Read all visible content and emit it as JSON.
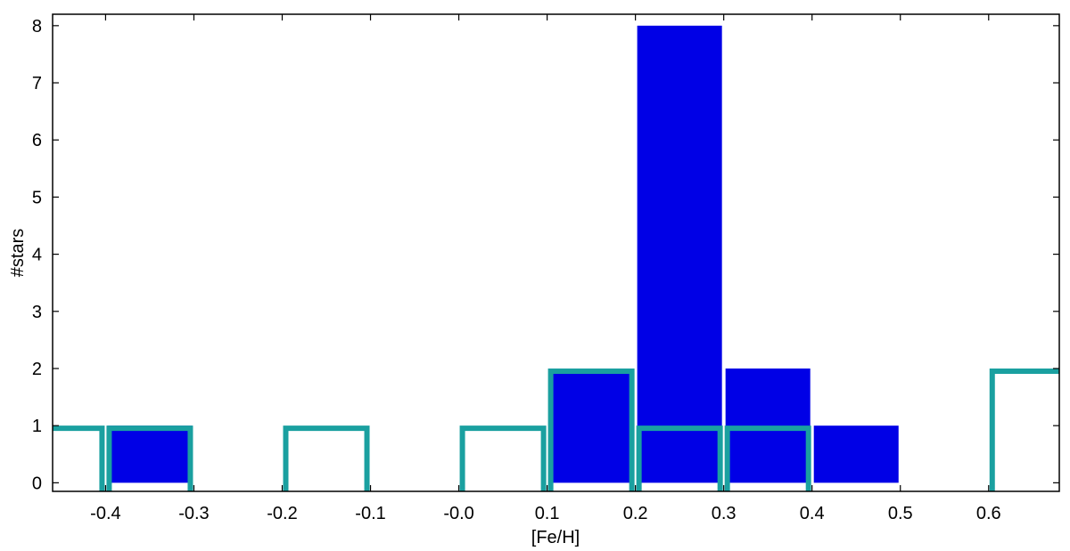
{
  "chart_data": {
    "type": "bar",
    "title": "",
    "xlabel": "[Fe/H]",
    "ylabel": "#stars",
    "xlim": [
      -0.46,
      0.68
    ],
    "ylim": [
      -0.15,
      8.2
    ],
    "grid": false,
    "x_ticks": [
      "-0.4",
      "-0.3",
      "-0.2",
      "-0.1",
      "-0.0",
      "0.1",
      "0.2",
      "0.3",
      "0.4",
      "0.5",
      "0.6"
    ],
    "x_tick_values": [
      -0.4,
      -0.3,
      -0.2,
      -0.1,
      0.0,
      0.1,
      0.2,
      0.3,
      0.4,
      0.5,
      0.6
    ],
    "y_ticks": [
      "0",
      "1",
      "2",
      "3",
      "4",
      "5",
      "6",
      "7",
      "8"
    ],
    "y_tick_values": [
      0,
      1,
      2,
      3,
      4,
      5,
      6,
      7,
      8
    ],
    "series": [
      {
        "style": "filled",
        "color": "#0000e6",
        "bins": [
          {
            "x0": -0.4,
            "x1": -0.3,
            "count": 1
          },
          {
            "x0": 0.1,
            "x1": 0.2,
            "count": 2
          },
          {
            "x0": 0.2,
            "x1": 0.3,
            "count": 8
          },
          {
            "x0": 0.3,
            "x1": 0.4,
            "count": 2
          },
          {
            "x0": 0.4,
            "x1": 0.5,
            "count": 1
          }
        ]
      },
      {
        "style": "outline",
        "color": "#1aa0a0",
        "bins": [
          {
            "x0": -0.5,
            "x1": -0.4,
            "count": 1
          },
          {
            "x0": -0.4,
            "x1": -0.3,
            "count": 1
          },
          {
            "x0": -0.2,
            "x1": -0.1,
            "count": 1
          },
          {
            "x0": 0.0,
            "x1": 0.1,
            "count": 1
          },
          {
            "x0": 0.1,
            "x1": 0.2,
            "count": 2
          },
          {
            "x0": 0.2,
            "x1": 0.3,
            "count": 1
          },
          {
            "x0": 0.3,
            "x1": 0.4,
            "count": 1
          },
          {
            "x0": 0.6,
            "x1": 0.7,
            "count": 2
          }
        ]
      }
    ]
  }
}
